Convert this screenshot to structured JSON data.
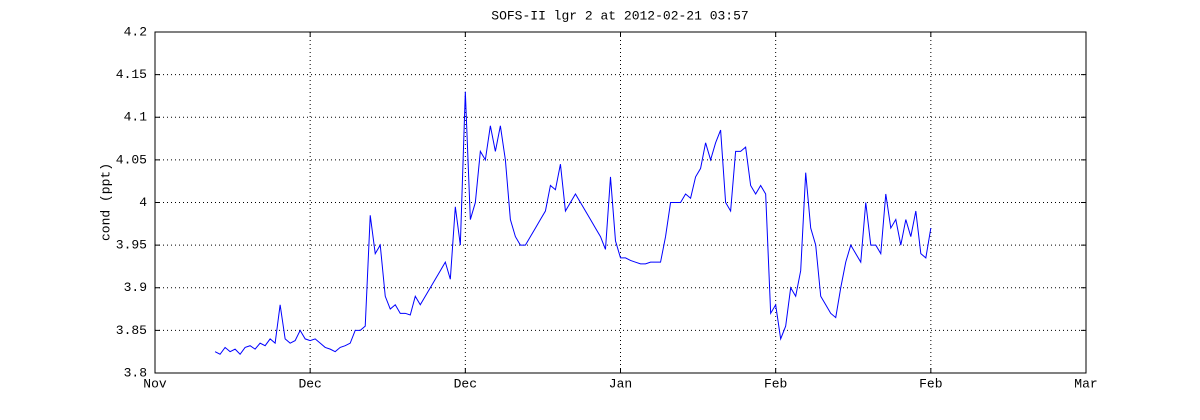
{
  "chart_data": {
    "type": "line",
    "title": "SOFS-II lgr 2 at 2012-02-21 03:57",
    "y_label": "cond (ppt)",
    "x": [
      12,
      13,
      14,
      15,
      16,
      17,
      18,
      19,
      20,
      21,
      22,
      23,
      24,
      25,
      26,
      27,
      28,
      29,
      30,
      31,
      32,
      33,
      34,
      35,
      36,
      37,
      38,
      39,
      40,
      41,
      42,
      43,
      44,
      45,
      46,
      47,
      48,
      49,
      50,
      51,
      52,
      53,
      54,
      55,
      56,
      57,
      58,
      59,
      60,
      61,
      62,
      63,
      64,
      65,
      66,
      67,
      68,
      69,
      70,
      71,
      72,
      73,
      74,
      75,
      76,
      77,
      78,
      79,
      80,
      81,
      82,
      83,
      84,
      85,
      86,
      87,
      88,
      89,
      90,
      91,
      92,
      93,
      94,
      95,
      96,
      97,
      98,
      99,
      100,
      101,
      102,
      103,
      104,
      105,
      106,
      107,
      108,
      109,
      110,
      111,
      112,
      113,
      114,
      115,
      116,
      117,
      118,
      119,
      120,
      121,
      122,
      123,
      124,
      125,
      126,
      127,
      128,
      129,
      130,
      131,
      132,
      133,
      134,
      135,
      136,
      137,
      138,
      139,
      140,
      141,
      142,
      143,
      144,
      145,
      146,
      147,
      148,
      149,
      150,
      151,
      152,
      153,
      154,
      155
    ],
    "series": [
      {
        "color": "#0000ff",
        "values": [
          3.825,
          3.822,
          3.83,
          3.825,
          3.828,
          3.822,
          3.83,
          3.832,
          3.828,
          3.835,
          3.832,
          3.84,
          3.835,
          3.88,
          3.84,
          3.835,
          3.838,
          3.85,
          3.84,
          3.838,
          3.84,
          3.835,
          3.83,
          3.828,
          3.825,
          3.83,
          3.832,
          3.835,
          3.85,
          3.85,
          3.855,
          3.985,
          3.94,
          3.95,
          3.89,
          3.875,
          3.88,
          3.87,
          3.87,
          3.868,
          3.89,
          3.88,
          3.89,
          3.9,
          3.91,
          3.92,
          3.93,
          3.91,
          3.995,
          3.95,
          4.13,
          3.98,
          4.0,
          4.06,
          4.05,
          4.09,
          4.06,
          4.09,
          4.05,
          3.98,
          3.96,
          3.95,
          3.95,
          3.96,
          3.97,
          3.98,
          3.99,
          4.02,
          4.015,
          4.045,
          3.99,
          4.0,
          4.01,
          4.0,
          3.99,
          3.98,
          3.97,
          3.96,
          3.945,
          4.03,
          3.955,
          3.935,
          3.935,
          3.932,
          3.93,
          3.928,
          3.928,
          3.93,
          3.93,
          3.93,
          3.96,
          4.0,
          4.0,
          4.0,
          4.01,
          4.005,
          4.03,
          4.04,
          4.07,
          4.05,
          4.07,
          4.085,
          4.0,
          3.99,
          4.06,
          4.06,
          4.065,
          4.02,
          4.01,
          4.02,
          4.01,
          3.87,
          3.88,
          3.84,
          3.855,
          3.9,
          3.89,
          3.92,
          4.035,
          3.97,
          3.95,
          3.89,
          3.88,
          3.87,
          3.865,
          3.9,
          3.93,
          3.95,
          3.94,
          3.93,
          4.0,
          3.95,
          3.95,
          3.94,
          4.01,
          3.97,
          3.98,
          3.95,
          3.98,
          3.96,
          3.99,
          3.94,
          3.935,
          3.97
        ]
      }
    ],
    "xlim": [
      0,
      186
    ],
    "xticks": [
      {
        "value": 0,
        "label": "Nov"
      },
      {
        "value": 31,
        "label": "Dec"
      },
      {
        "value": 62,
        "label": "Dec"
      },
      {
        "value": 93,
        "label": "Jan"
      },
      {
        "value": 124,
        "label": "Feb"
      },
      {
        "value": 155,
        "label": "Feb"
      },
      {
        "value": 186,
        "label": "Mar"
      }
    ],
    "ylim": [
      3.8,
      4.2
    ],
    "yticks": [
      3.8,
      3.85,
      3.9,
      3.95,
      4,
      4.05,
      4.1,
      4.15,
      4.2
    ],
    "grid": true
  }
}
